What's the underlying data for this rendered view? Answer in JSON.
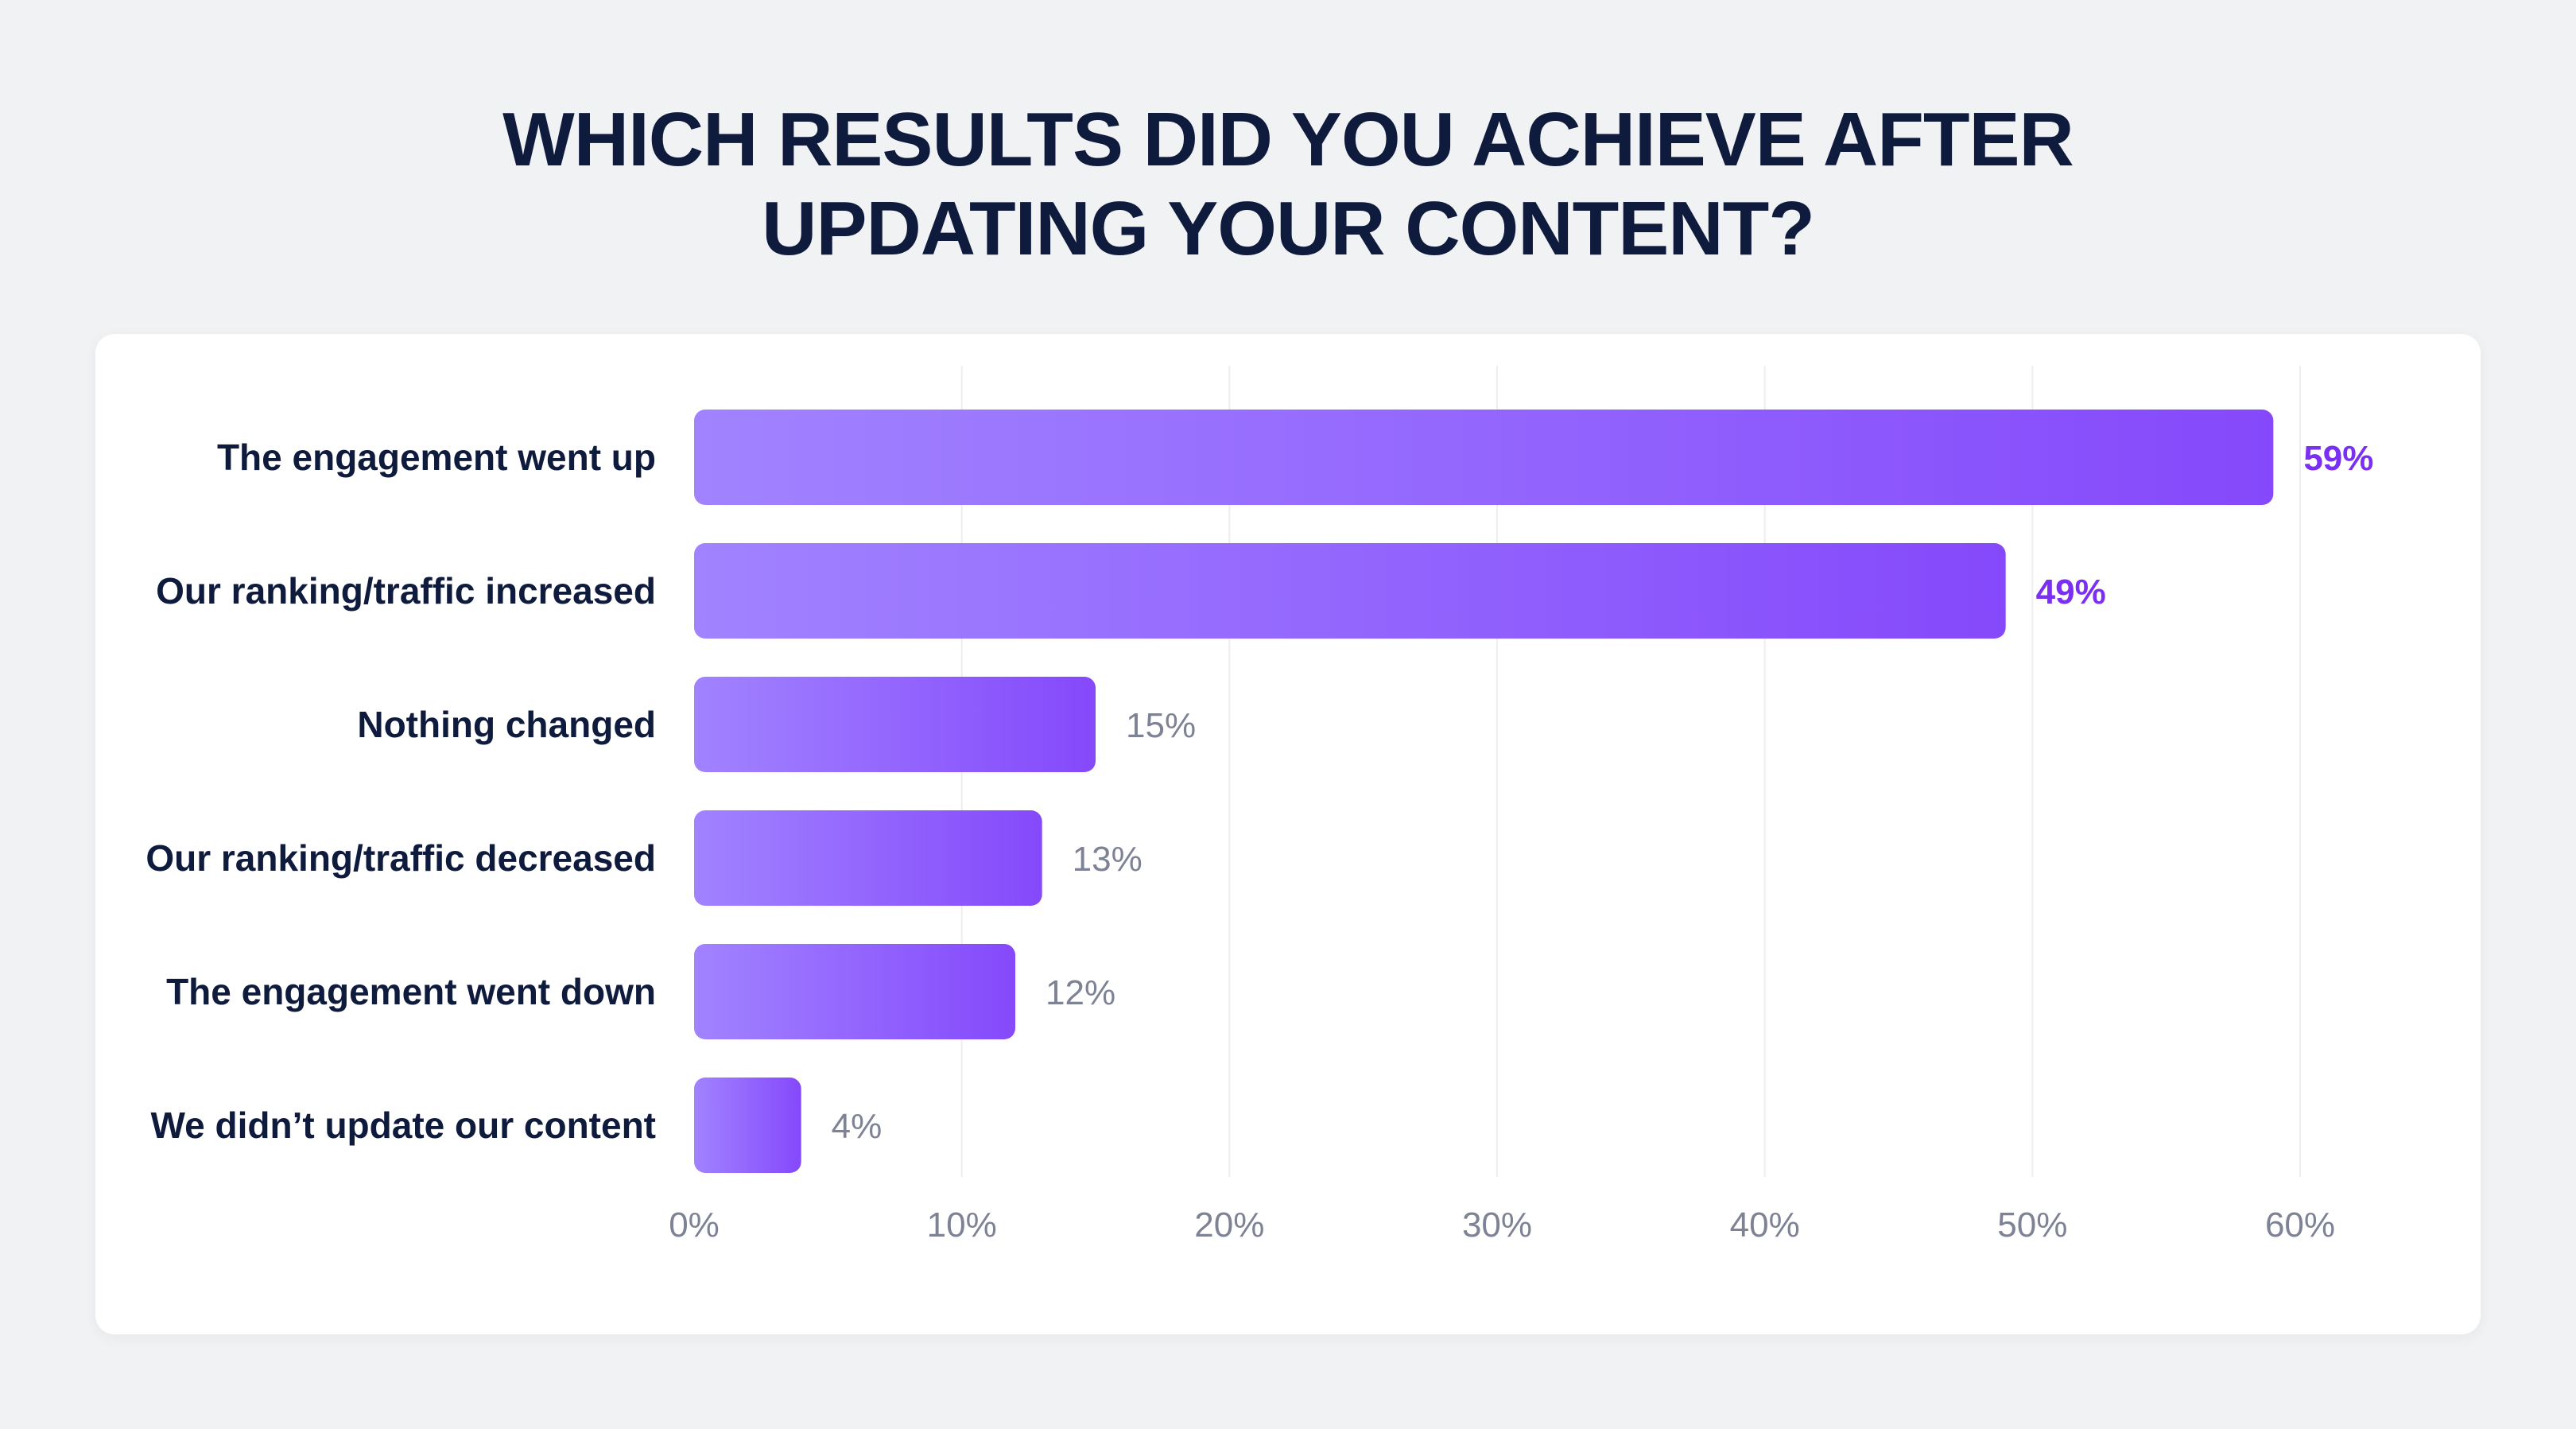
{
  "chart_data": {
    "type": "bar",
    "orientation": "horizontal",
    "title_lines": [
      "WHICH RESULTS DID YOU ACHIEVE AFTER",
      "UPDATING YOUR CONTENT?"
    ],
    "categories": [
      "The engagement went up",
      "Our ranking/traffic increased",
      "Nothing changed",
      "Our ranking/traffic decreased",
      "The engagement went down",
      "We didn’t update our content"
    ],
    "values": [
      59,
      49,
      15,
      13,
      12,
      4
    ],
    "value_labels": [
      "59%",
      "49%",
      "15%",
      "13%",
      "12%",
      "4%"
    ],
    "highlighted": [
      true,
      true,
      false,
      false,
      false,
      false
    ],
    "xticks": [
      0,
      10,
      20,
      30,
      40,
      50,
      60
    ],
    "xtick_labels": [
      "0%",
      "10%",
      "20%",
      "30%",
      "40%",
      "50%",
      "60%"
    ],
    "xlim": [
      0,
      60
    ],
    "grid": true,
    "colors": {
      "bar_start": "#a183ff",
      "bar_end": "#8549fb",
      "highlight_label": "#7b2ff2",
      "muted_label": "#7d8294",
      "category_label": "#0f1b3d",
      "grid": "#eeeef2"
    }
  }
}
